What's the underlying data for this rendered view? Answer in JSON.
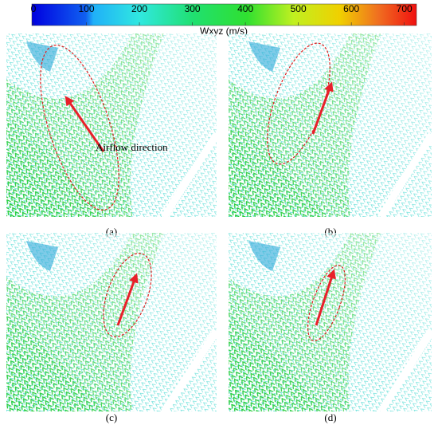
{
  "colorbar": {
    "label": "Wxyz (m/s)",
    "lim": [
      0,
      720
    ],
    "ticks": [
      0,
      100,
      200,
      300,
      400,
      500,
      600,
      700
    ]
  },
  "panels": [
    {
      "label": "(a)",
      "annotation": "Airflow direction"
    },
    {
      "label": "(b)"
    },
    {
      "label": "(c)"
    },
    {
      "label": "(d)"
    }
  ]
}
